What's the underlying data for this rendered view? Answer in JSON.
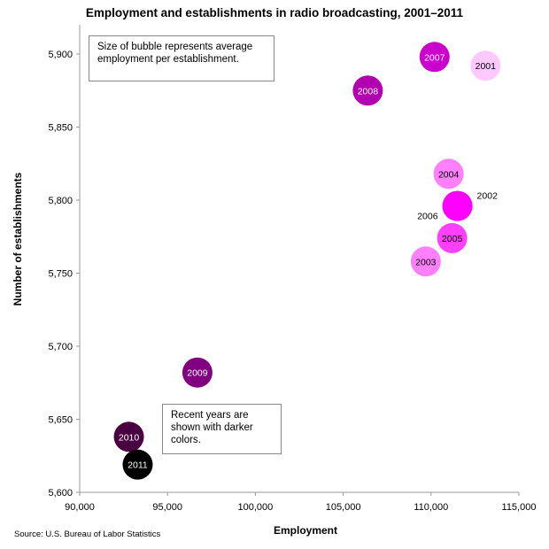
{
  "chart_data": {
    "type": "scatter",
    "title": "Employment and establishments in radio broadcasting, 2001–2011",
    "xlabel": "Employment",
    "ylabel": "Number of establishments",
    "xlim": [
      90000,
      115000
    ],
    "ylim": [
      5600,
      5920
    ],
    "x_ticks": [
      90000,
      95000,
      100000,
      105000,
      110000,
      115000
    ],
    "x_tick_labels": [
      "90,000",
      "95,000",
      "100,000",
      "105,000",
      "110,000",
      "115,000"
    ],
    "y_ticks": [
      5600,
      5650,
      5700,
      5750,
      5800,
      5850,
      5900
    ],
    "y_tick_labels": [
      "5,600",
      "5,650",
      "5,700",
      "5,750",
      "5,800",
      "5,850",
      "5,900"
    ],
    "grid": false,
    "points": [
      {
        "label": "2001",
        "x": 113100,
        "y": 5892,
        "color": "#ffc8ff",
        "label_color": "#000000",
        "label_outside": false
      },
      {
        "label": "2002",
        "x": 111500,
        "y": 5796,
        "color": "#ff00ff",
        "label_color": "#000000",
        "label_outside": "right"
      },
      {
        "label": "2003",
        "x": 109700,
        "y": 5758,
        "color": "#ff80ff",
        "label_color": "#000000",
        "label_outside": false
      },
      {
        "label": "2004",
        "x": 111000,
        "y": 5818,
        "color": "#ff80ff",
        "label_color": "#000000",
        "label_outside": false
      },
      {
        "label": "2005",
        "x": 111200,
        "y": 5774,
        "color": "#ff40ff",
        "label_color": "#000000",
        "label_outside": false
      },
      {
        "label": "2006",
        "x": 111500,
        "y": 5796,
        "color": "#ff00ff",
        "label_color": "#000000",
        "label_outside": "left"
      },
      {
        "label": "2007",
        "x": 110200,
        "y": 5898,
        "color": "#cc00cc",
        "label_color": "#ffffff",
        "label_outside": false
      },
      {
        "label": "2008",
        "x": 106400,
        "y": 5875,
        "color": "#b000b0",
        "label_color": "#ffffff",
        "label_outside": false
      },
      {
        "label": "2009",
        "x": 96700,
        "y": 5682,
        "color": "#800080",
        "label_color": "#ffffff",
        "label_outside": false
      },
      {
        "label": "2010",
        "x": 92800,
        "y": 5638,
        "color": "#4a0040",
        "label_color": "#ffffff",
        "label_outside": false
      },
      {
        "label": "2011",
        "x": 93300,
        "y": 5619,
        "color": "#000000",
        "label_color": "#ffffff",
        "label_outside": false
      }
    ],
    "annotations": [
      "Size of bubble represents average employment per establishment.",
      "Recent years are shown with darker colors."
    ],
    "source": "Source: U.S. Bureau of Labor Statistics"
  }
}
